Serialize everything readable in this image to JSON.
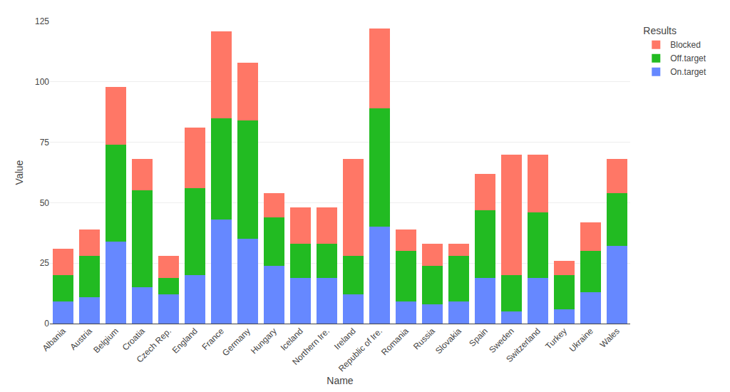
{
  "chart_data": {
    "type": "bar",
    "stacked": true,
    "categories": [
      "Albania",
      "Austria",
      "Belgium",
      "Croatia",
      "Czech Rep.",
      "England",
      "France",
      "Germany",
      "Hungary",
      "Iceland",
      "Northern Ire.",
      "Ireland",
      "Republic of Ire.",
      "Romania",
      "Russia",
      "Slovakia",
      "Spain",
      "Sweden",
      "Switzerland",
      "Turkey",
      "Ukraine",
      "Wales"
    ],
    "series": [
      {
        "name": "On.target",
        "color": "#6688FF",
        "values": [
          9,
          11,
          34,
          15,
          12,
          20,
          43,
          35,
          24,
          19,
          19,
          12,
          40,
          9,
          8,
          9,
          19,
          5,
          19,
          6,
          13,
          32
        ]
      },
      {
        "name": "Off.target",
        "color": "#22BB22",
        "values": [
          11,
          17,
          40,
          40,
          7,
          36,
          42,
          49,
          20,
          14,
          14,
          16,
          49,
          21,
          16,
          19,
          28,
          15,
          27,
          14,
          17,
          22
        ]
      },
      {
        "name": "Blocked",
        "color": "#FF7766",
        "values": [
          11,
          11,
          24,
          13,
          9,
          25,
          36,
          24,
          10,
          15,
          15,
          40,
          33,
          9,
          9,
          5,
          15,
          50,
          24,
          6,
          12,
          14
        ]
      }
    ],
    "xlabel": "Name",
    "ylabel": "Value",
    "legend_title": "Results",
    "legend": "upper right",
    "ylim": [
      0,
      125
    ],
    "yticks": [
      0,
      25,
      50,
      75,
      100,
      125
    ],
    "grid": true
  }
}
